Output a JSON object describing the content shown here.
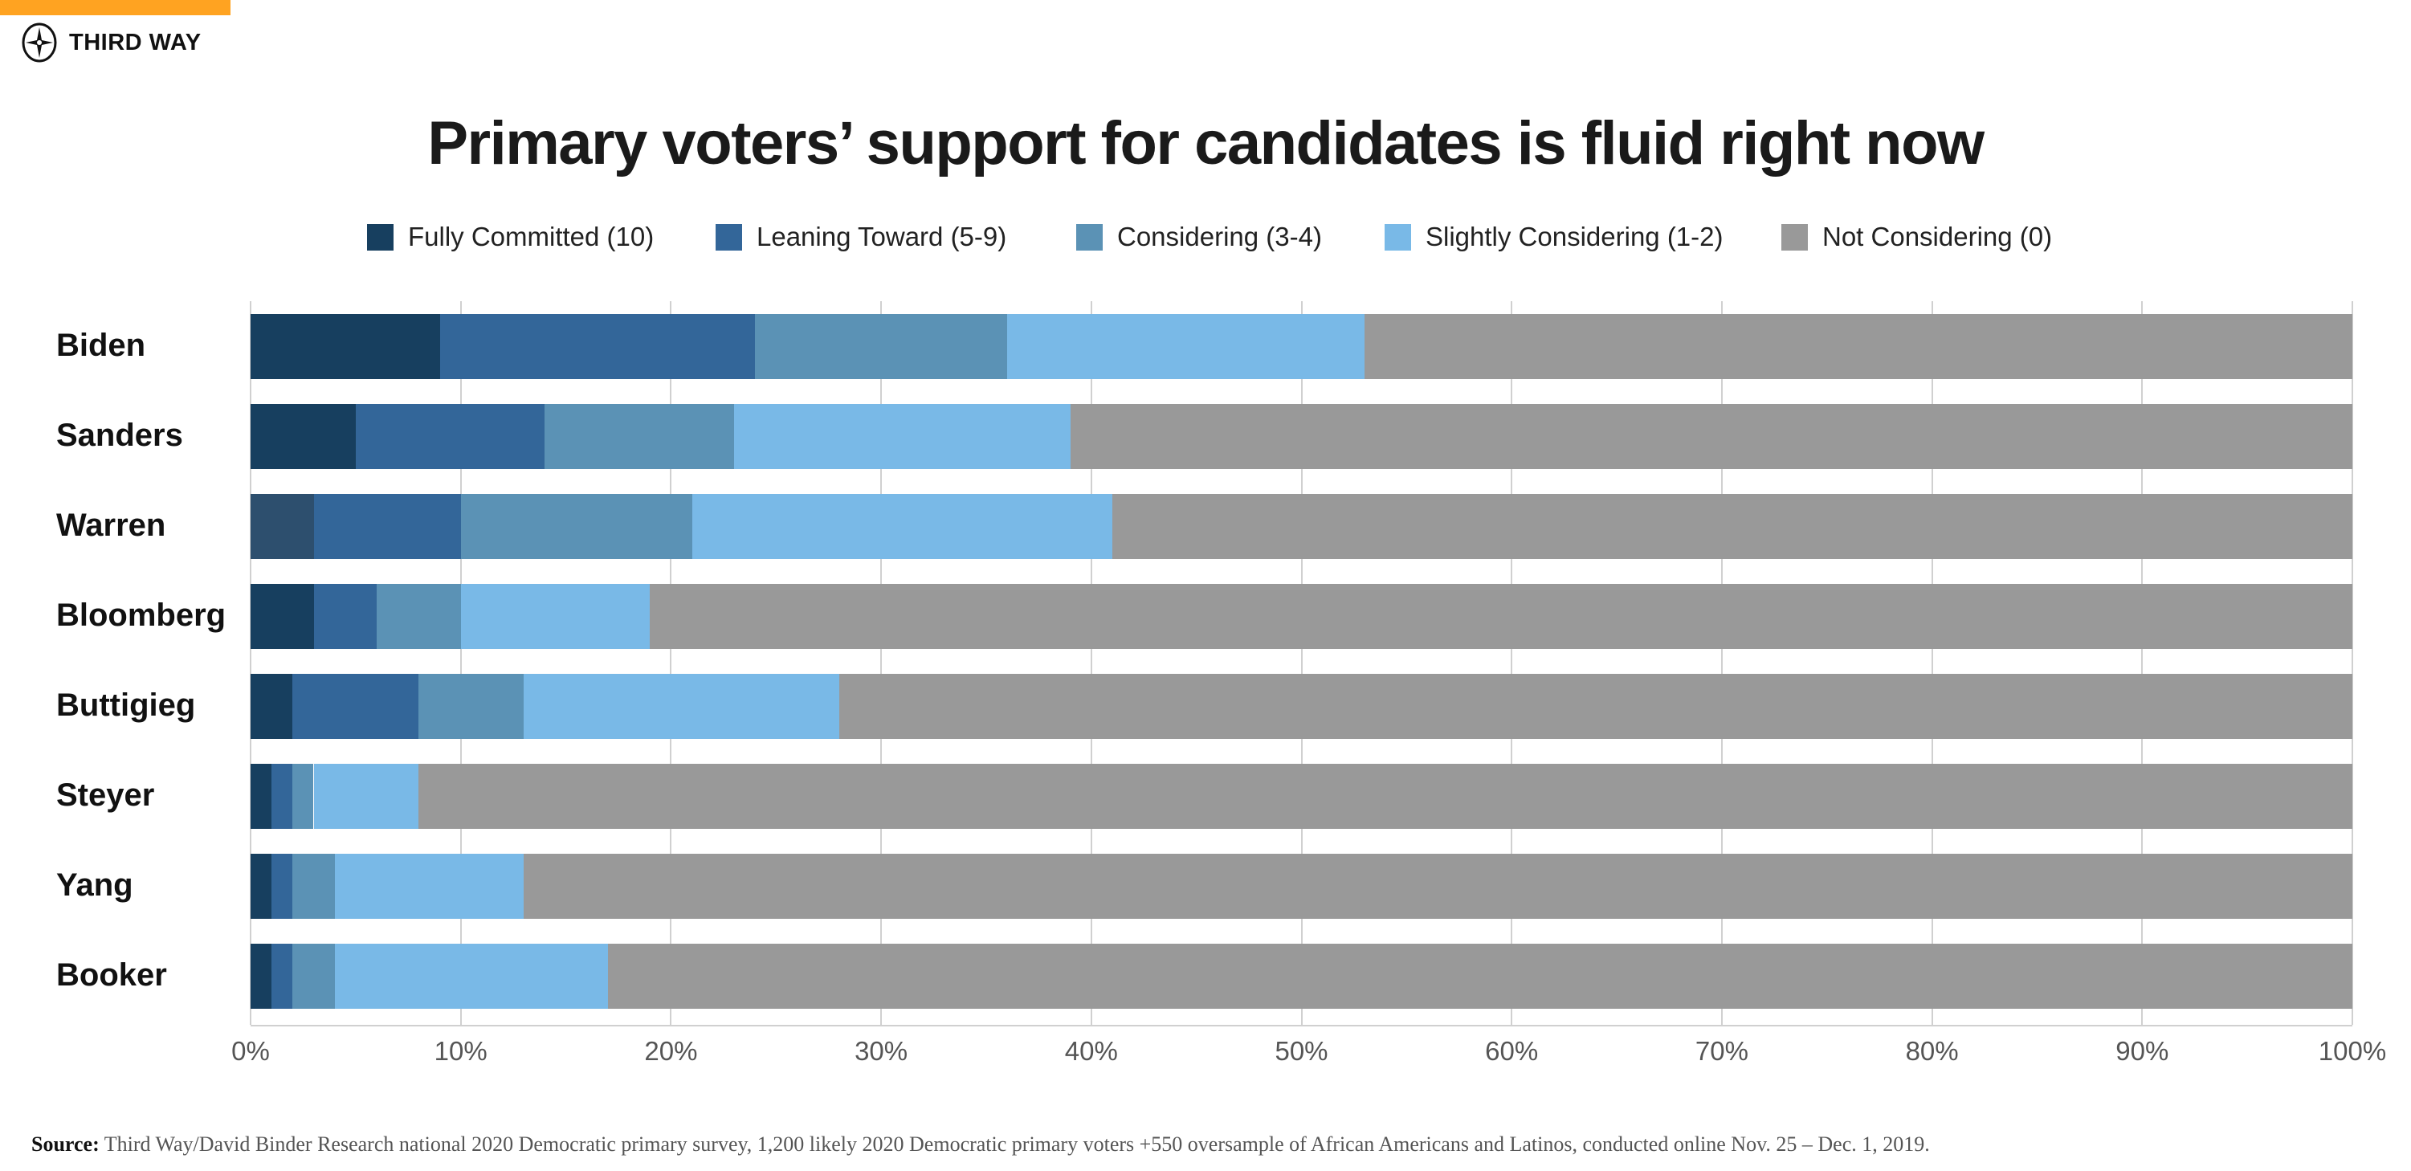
{
  "header": {
    "brand": "THIRD WAY",
    "brand_color": "#ffa321"
  },
  "chart_data": {
    "type": "bar",
    "orientation": "horizontal",
    "stacked": true,
    "title": "Primary voters’ support for candidates is fluid right now",
    "categories": [
      "Biden",
      "Sanders",
      "Warren",
      "Bloomberg",
      "Buttigieg",
      "Steyer",
      "Yang",
      "Booker"
    ],
    "series": [
      {
        "name": "Fully Committed (10)",
        "color": "#173f5f",
        "values": [
          9,
          5,
          3,
          3,
          2,
          1,
          1,
          1
        ]
      },
      {
        "name": "Leaning Toward (5-9)",
        "color": "#336699",
        "values": [
          15,
          9,
          7,
          3,
          6,
          1,
          1,
          1
        ]
      },
      {
        "name": "Considering (3-4)",
        "color": "#5b92b5",
        "values": [
          12,
          9,
          11,
          4,
          5,
          1,
          2,
          2
        ]
      },
      {
        "name": "Slightly Considering (1-2)",
        "color": "#79b9e7",
        "values": [
          17,
          16,
          20,
          9,
          15,
          5,
          9,
          13
        ]
      },
      {
        "name": "Not Considering (0)",
        "color": "#999999",
        "values": [
          47,
          61,
          59,
          81,
          72,
          92,
          87,
          83
        ]
      }
    ],
    "xlim": [
      0,
      100
    ],
    "xticks": [
      "0%",
      "10%",
      "20%",
      "30%",
      "40%",
      "50%",
      "60%",
      "70%",
      "80%",
      "90%",
      "100%"
    ],
    "grid": true,
    "legend": "top"
  },
  "footer": {
    "source_label": "Source:",
    "source_text": "Third Way/David Binder Research national 2020 Democratic primary survey, 1,200 likely 2020 Democratic primary voters +550 oversample of African Americans and Latinos, conducted online Nov. 25 – Dec. 1, 2019."
  }
}
